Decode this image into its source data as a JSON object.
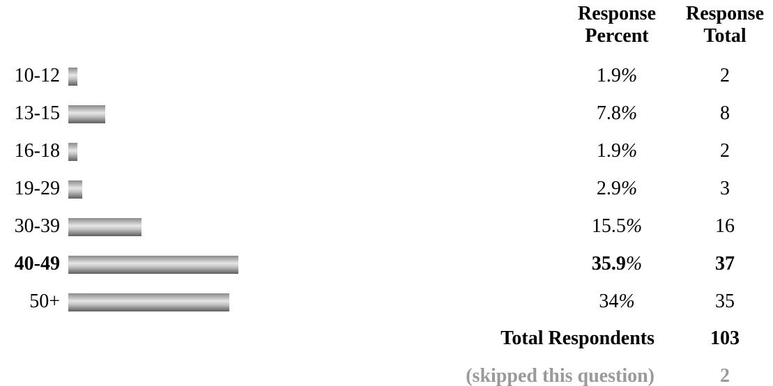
{
  "header": {
    "percent_line1": "Response",
    "percent_line2": "Percent",
    "total_line1": "Response",
    "total_line2": "Total"
  },
  "chart_data": {
    "type": "bar",
    "orientation": "horizontal",
    "categories": [
      "10-12",
      "13-15",
      "16-18",
      "19-29",
      "30-39",
      "40-49",
      "50+"
    ],
    "values": [
      1.9,
      7.8,
      1.9,
      2.9,
      15.5,
      35.9,
      34
    ],
    "percent_labels": [
      "1.9",
      "7.8",
      "1.9",
      "2.9",
      "15.5",
      "35.9",
      "34"
    ],
    "totals": [
      2,
      8,
      2,
      3,
      16,
      37,
      35
    ],
    "highlight_index": 5,
    "bar_color": "#9a9a9a"
  },
  "percent_sign": "%",
  "summary": {
    "respondents_label": "Total Respondents",
    "respondents_value": "103",
    "skipped_label": "(skipped this question)",
    "skipped_value": "2"
  },
  "colors": {
    "text": "#000000",
    "muted": "#9a9a9a"
  }
}
